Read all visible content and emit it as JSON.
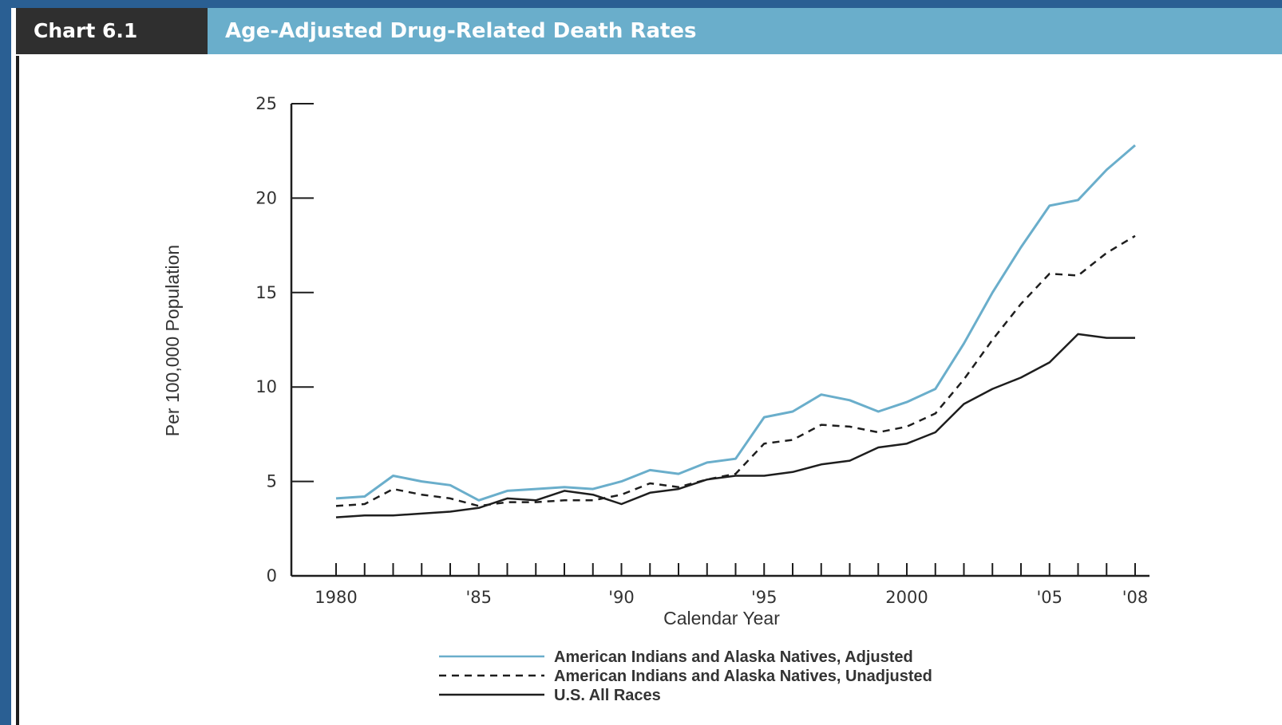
{
  "header": {
    "chart_number": "Chart 6.1",
    "title": "Age-Adjusted Drug-Related Death Rates"
  },
  "colors": {
    "header_dark": "#2f2f2f",
    "header_accent": "#6aaecb",
    "series_adjusted": "#6aaecb",
    "series_unadjusted": "#1e1e1e",
    "series_us": "#1e1e1e"
  },
  "chart_data": {
    "type": "line",
    "title": "Age-Adjusted Drug-Related Death Rates",
    "xlabel": "Calendar Year",
    "ylabel": "Per 100,000 Population",
    "xlim": [
      1980,
      2008
    ],
    "ylim": [
      0,
      25
    ],
    "yticks": [
      0,
      5,
      10,
      15,
      20,
      25
    ],
    "xticks": [
      {
        "value": 1980,
        "label": "1980"
      },
      {
        "value": 1985,
        "label": "'85"
      },
      {
        "value": 1990,
        "label": "'90"
      },
      {
        "value": 1995,
        "label": "'95"
      },
      {
        "value": 2000,
        "label": "2000"
      },
      {
        "value": 2005,
        "label": "'05"
      },
      {
        "value": 2008,
        "label": "'08"
      }
    ],
    "x": [
      1980,
      1981,
      1982,
      1983,
      1984,
      1985,
      1986,
      1987,
      1988,
      1989,
      1990,
      1991,
      1992,
      1993,
      1994,
      1995,
      1996,
      1997,
      1998,
      1999,
      2000,
      2001,
      2002,
      2003,
      2004,
      2005,
      2006,
      2007,
      2008
    ],
    "series": [
      {
        "name": "American Indians and Alaska Natives, Adjusted",
        "style": "solid",
        "color": "#6aaecb",
        "values": [
          4.1,
          4.2,
          5.3,
          5.0,
          4.8,
          4.0,
          4.5,
          4.6,
          4.7,
          4.6,
          5.0,
          5.6,
          5.4,
          6.0,
          6.2,
          8.4,
          8.7,
          9.6,
          9.3,
          8.7,
          9.2,
          9.9,
          12.3,
          15.0,
          17.4,
          19.6,
          19.9,
          21.5,
          22.8
        ]
      },
      {
        "name": "American Indians and Alaska Natives, Unadjusted",
        "style": "dashed",
        "color": "#1e1e1e",
        "values": [
          3.7,
          3.8,
          4.6,
          4.3,
          4.1,
          3.7,
          3.9,
          3.9,
          4.0,
          4.0,
          4.3,
          4.9,
          4.7,
          5.1,
          5.4,
          7.0,
          7.2,
          8.0,
          7.9,
          7.6,
          7.9,
          8.6,
          10.4,
          12.5,
          14.4,
          16.0,
          15.9,
          17.1,
          18.0
        ]
      },
      {
        "name": "U.S. All Races",
        "style": "solid",
        "color": "#1e1e1e",
        "values": [
          3.1,
          3.2,
          3.2,
          3.3,
          3.4,
          3.6,
          4.1,
          4.0,
          4.5,
          4.3,
          3.8,
          4.4,
          4.6,
          5.1,
          5.3,
          5.3,
          5.5,
          5.9,
          6.1,
          6.8,
          7.0,
          7.6,
          9.1,
          9.9,
          10.5,
          11.3,
          12.8,
          12.6,
          12.6
        ]
      }
    ],
    "legend_position": "bottom"
  }
}
